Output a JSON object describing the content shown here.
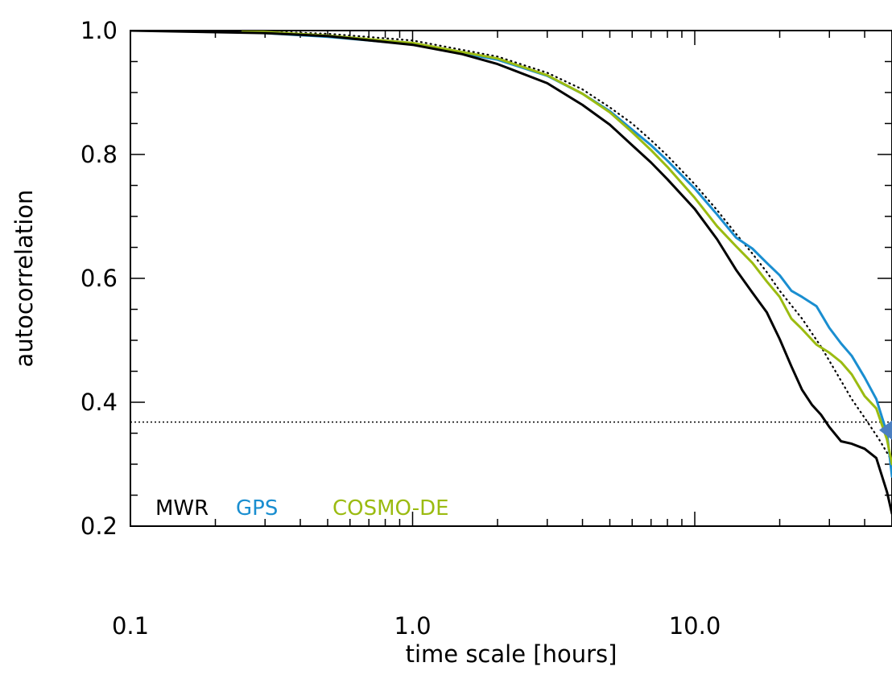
{
  "chart_data": {
    "type": "line",
    "title": "",
    "xlabel": "time scale [hours]",
    "ylabel": "autocorrelation",
    "x_scale": "log",
    "xlim": [
      0.1,
      50
    ],
    "ylim": [
      0.2,
      1.0
    ],
    "x_ticks": [
      {
        "value": 0.1,
        "label": "0.1"
      },
      {
        "value": 1.0,
        "label": "1.0"
      },
      {
        "value": 10.0,
        "label": "10.0"
      }
    ],
    "y_ticks": [
      {
        "value": 0.2,
        "label": "0.2"
      },
      {
        "value": 0.4,
        "label": "0.4"
      },
      {
        "value": 0.6,
        "label": "0.6"
      },
      {
        "value": 0.8,
        "label": "0.8"
      },
      {
        "value": 1.0,
        "label": "1.0"
      }
    ],
    "grid": false,
    "legend_placement": "bottom-left",
    "series": [
      {
        "name": "MWR",
        "color": "#000000",
        "style": "solid",
        "x": [
          0.1,
          0.3,
          0.5,
          1.0,
          1.5,
          2.0,
          3.0,
          4.0,
          5.0,
          6.0,
          7.0,
          8.0,
          10.0,
          12.0,
          14.0,
          16.0,
          18.0,
          20.0,
          22.0,
          24.0,
          26.0,
          28.0,
          30.0,
          33.0,
          36.0,
          40.0,
          44.0,
          48.0,
          50.0
        ],
        "y": [
          1.0,
          0.996,
          0.991,
          0.977,
          0.962,
          0.946,
          0.915,
          0.88,
          0.848,
          0.815,
          0.787,
          0.76,
          0.712,
          0.663,
          0.614,
          0.577,
          0.545,
          0.502,
          0.458,
          0.42,
          0.396,
          0.38,
          0.36,
          0.337,
          0.333,
          0.325,
          0.31,
          0.255,
          0.22
        ]
      },
      {
        "name": "GPS",
        "color": "#1a8ed0",
        "style": "solid",
        "x": [
          0.25,
          0.5,
          1.0,
          2.0,
          3.0,
          4.0,
          5.0,
          6.0,
          7.0,
          8.0,
          10.0,
          12.0,
          14.0,
          16.0,
          18.0,
          20.0,
          22.0,
          24.0,
          27.0,
          30.0,
          33.0,
          36.0,
          40.0,
          44.0,
          48.0,
          50.0
        ],
        "y": [
          0.998,
          0.99,
          0.978,
          0.953,
          0.927,
          0.898,
          0.87,
          0.84,
          0.815,
          0.79,
          0.745,
          0.703,
          0.666,
          0.648,
          0.625,
          0.605,
          0.58,
          0.57,
          0.555,
          0.52,
          0.495,
          0.475,
          0.44,
          0.405,
          0.35,
          0.28
        ]
      },
      {
        "name": "COSMO-DE",
        "color": "#9bbb11",
        "style": "solid",
        "x": [
          0.25,
          0.5,
          1.0,
          2.0,
          3.0,
          4.0,
          5.0,
          6.0,
          7.0,
          8.0,
          10.0,
          12.0,
          14.0,
          16.0,
          18.0,
          20.0,
          22.0,
          24.0,
          27.0,
          30.0,
          33.0,
          36.0,
          40.0,
          44.0,
          48.0,
          50.0
        ],
        "y": [
          1.0,
          0.992,
          0.98,
          0.955,
          0.928,
          0.898,
          0.868,
          0.836,
          0.807,
          0.78,
          0.73,
          0.684,
          0.652,
          0.625,
          0.595,
          0.57,
          0.535,
          0.518,
          0.493,
          0.48,
          0.465,
          0.445,
          0.41,
          0.39,
          0.34,
          0.3
        ]
      },
      {
        "name": "",
        "color": "#000000",
        "style": "dotted",
        "x": [
          0.25,
          0.5,
          1.0,
          2.0,
          3.0,
          4.0,
          5.0,
          6.0,
          7.0,
          8.0,
          10.0,
          12.0,
          14.0,
          16.0,
          18.0,
          20.0,
          24.0,
          28.0,
          32.0,
          36.0,
          40.0,
          45.0,
          50.0
        ],
        "y": [
          1.0,
          0.995,
          0.984,
          0.958,
          0.932,
          0.905,
          0.876,
          0.85,
          0.823,
          0.798,
          0.752,
          0.71,
          0.672,
          0.64,
          0.61,
          0.58,
          0.535,
          0.49,
          0.445,
          0.405,
          0.375,
          0.34,
          0.305
        ]
      }
    ],
    "reference_line": {
      "y": 0.368,
      "style": "dotted",
      "color": "#000000"
    },
    "marker": {
      "shape": "triangle",
      "color": "#4a7fc1",
      "x": 50,
      "y": 0.355
    }
  }
}
